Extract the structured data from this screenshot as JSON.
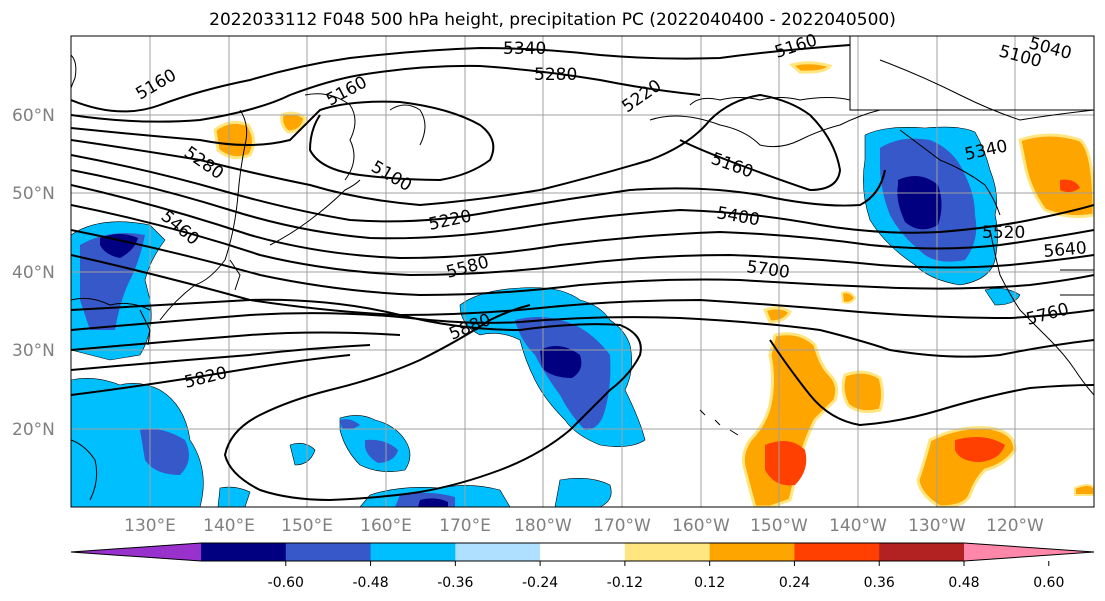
{
  "title": "2022033112 F048 500 hPa height, precipitation PC (2022040400 - 2022040500)",
  "lat_labels": [
    "60°N",
    "50°N",
    "40°N",
    "30°N",
    "20°N"
  ],
  "lon_labels": [
    "130°E",
    "140°E",
    "150°E",
    "160°E",
    "170°E",
    "180°W",
    "170°W",
    "160°W",
    "150°W",
    "140°W",
    "130°W",
    "120°W"
  ],
  "contour_labels": [
    "5340",
    "5280",
    "5160",
    "5160",
    "5220",
    "5160",
    "5100",
    "5040",
    "5280",
    "5100",
    "5460",
    "5220",
    "5160",
    "5400",
    "5340",
    "5580",
    "5700",
    "5520",
    "5640",
    "5880",
    "5760",
    "5820"
  ],
  "colorbar": {
    "ticks": [
      "-0.60",
      "-0.48",
      "-0.36",
      "-0.24",
      "-0.12",
      "0.12",
      "0.24",
      "0.36",
      "0.48",
      "0.60"
    ],
    "colors": [
      "#9932cc",
      "#000080",
      "#3658c8",
      "#00bfff",
      "#b0e0ff",
      "#ffffff",
      "#ffe680",
      "#ffa500",
      "#ff4000",
      "#b22222",
      "#ff88aa"
    ]
  }
}
